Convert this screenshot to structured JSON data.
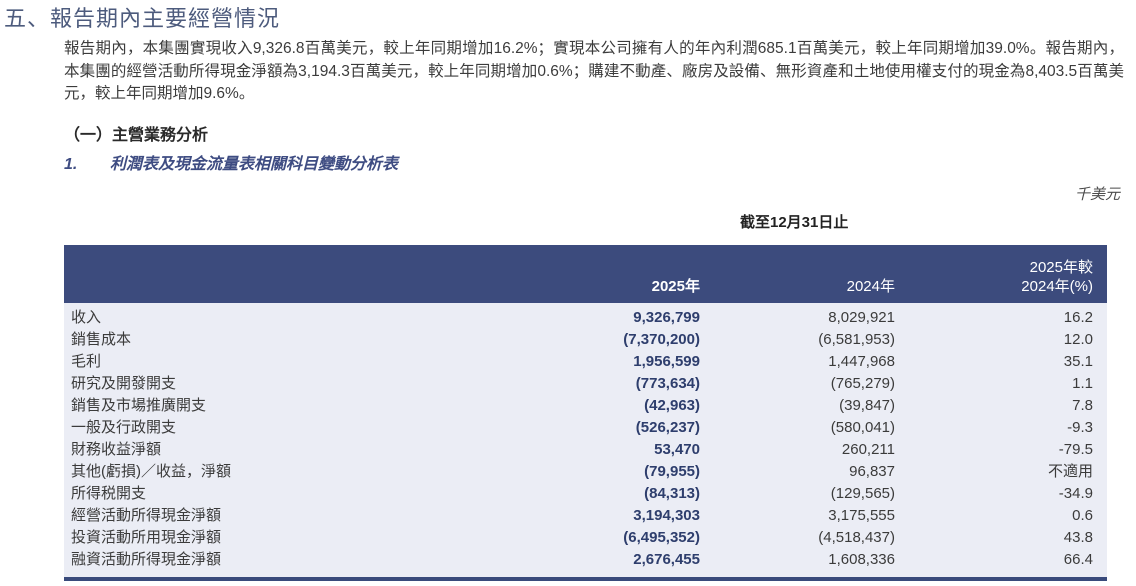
{
  "page": {
    "title": "五、報告期內主要經營情況",
    "paragraph": "報告期內，本集團實現收入9,326.8百萬美元，較上年同期增加16.2%；實現本公司擁有人的年內利潤685.1百萬美元，較上年同期增加39.0%。報告期內，本集團的經營活動所得現金淨額為3,194.3百萬美元，較上年同期增加0.6%；購建不動產、廠房及設備、無形資產和土地使用權支付的現金為8,403.5百萬美元，較上年同期增加9.6%。",
    "section_heading": "（一）主營業務分析",
    "subsection_number": "1.",
    "subsection_title": "利潤表及現金流量表相關科目變動分析表",
    "unit_label": "千美元",
    "period_label": "截至12月31日止"
  },
  "table": {
    "col_2025": "2025年",
    "col_2024": "2024年",
    "col_change_line1": "2025年較",
    "col_change_line2": "2024年(%)",
    "rows": [
      {
        "label": "收入",
        "y2025": "9,326,799",
        "y2024": "8,029,921",
        "change": "16.2"
      },
      {
        "label": "銷售成本",
        "y2025": "(7,370,200)",
        "y2024": "(6,581,953)",
        "change": "12.0"
      },
      {
        "label": "毛利",
        "y2025": "1,956,599",
        "y2024": "1,447,968",
        "change": "35.1"
      },
      {
        "label": "研究及開發開支",
        "y2025": "(773,634)",
        "y2024": "(765,279)",
        "change": "1.1"
      },
      {
        "label": "銷售及市場推廣開支",
        "y2025": "(42,963)",
        "y2024": "(39,847)",
        "change": "7.8"
      },
      {
        "label": "一般及行政開支",
        "y2025": "(526,237)",
        "y2024": "(580,041)",
        "change": "-9.3"
      },
      {
        "label": "財務收益淨額",
        "y2025": "53,470",
        "y2024": "260,211",
        "change": "-79.5"
      },
      {
        "label": "其他(虧損)／收益，淨額",
        "y2025": "(79,955)",
        "y2024": "96,837",
        "change": "不適用"
      },
      {
        "label": "所得税開支",
        "y2025": "(84,313)",
        "y2024": "(129,565)",
        "change": "-34.9"
      },
      {
        "label": "經營活動所得現金淨額",
        "y2025": "3,194,303",
        "y2024": "3,175,555",
        "change": "0.6"
      },
      {
        "label": "投資活動所用現金淨額",
        "y2025": "(6,495,352)",
        "y2024": "(4,518,437)",
        "change": "43.8"
      },
      {
        "label": "融資活動所得現金淨額",
        "y2025": "2,676,455",
        "y2024": "1,608,336",
        "change": "66.4"
      }
    ]
  },
  "colors": {
    "header_bar": "#3c4b7d",
    "table_body_bg": "#ebedf5",
    "value_2025_text": "#2e3e6d",
    "title_text": "#4d5b7d",
    "subsection_text": "#3e4c82",
    "bottom_rule": "#394a7b"
  }
}
